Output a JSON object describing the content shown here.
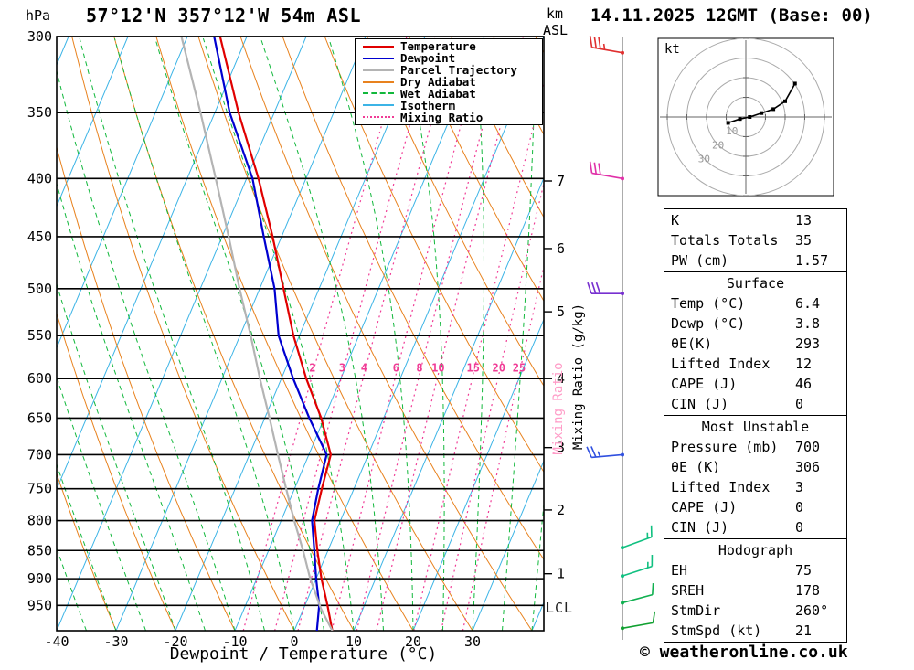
{
  "meta": {
    "pressure_unit": "hPa",
    "title": "57°12'N 357°12'W 54m ASL",
    "datetime": "14.11.2025 12GMT (Base: 00)",
    "altitude_unit_line1": "km",
    "altitude_unit_line2": "ASL",
    "xlabel": "Dewpoint / Temperature (°C)",
    "mixing_ratio_axis_label": "Mixing Ratio (g/kg)",
    "mixing_ratio_watermark": "Mixing Ratio",
    "lcl_label": "LCL",
    "copyright": "© weatheronline.co.uk",
    "hodograph_unit": "kt"
  },
  "chart_data": {
    "type": "line",
    "subtype": "skew_t_log_p",
    "title": "57°12'N 357°12'W 54m ASL",
    "xlabel": "Dewpoint / Temperature (°C)",
    "ylabel": "hPa",
    "x_ticks": [
      -40,
      -30,
      -20,
      -10,
      0,
      10,
      20,
      30
    ],
    "xlim": [
      -40,
      42
    ],
    "pressure_ticks": [
      300,
      350,
      400,
      450,
      500,
      550,
      600,
      650,
      700,
      750,
      800,
      850,
      900,
      950
    ],
    "plim": [
      300,
      1000
    ],
    "grid": true,
    "legend_position": "top-right",
    "series": [
      {
        "name": "Temperature",
        "color": "#e00000",
        "width": 2.2,
        "points": [
          [
            1000,
            6.4
          ],
          [
            950,
            3.8
          ],
          [
            900,
            0.9
          ],
          [
            850,
            -1.8
          ],
          [
            800,
            -4.4
          ],
          [
            750,
            -5.4
          ],
          [
            700,
            -6.3
          ],
          [
            650,
            -10.5
          ],
          [
            600,
            -15.8
          ],
          [
            550,
            -21.0
          ],
          [
            500,
            -26.0
          ],
          [
            450,
            -31.5
          ],
          [
            400,
            -38.0
          ],
          [
            350,
            -46.0
          ],
          [
            300,
            -54.5
          ]
        ]
      },
      {
        "name": "Dewpoint",
        "color": "#0000d0",
        "width": 2.2,
        "points": [
          [
            1000,
            3.8
          ],
          [
            950,
            2.4
          ],
          [
            900,
            0.0
          ],
          [
            850,
            -2.3
          ],
          [
            800,
            -4.8
          ],
          [
            750,
            -6.0
          ],
          [
            700,
            -7.0
          ],
          [
            650,
            -12.5
          ],
          [
            600,
            -18.0
          ],
          [
            550,
            -23.5
          ],
          [
            500,
            -27.5
          ],
          [
            450,
            -33.0
          ],
          [
            400,
            -39.0
          ],
          [
            350,
            -47.5
          ],
          [
            300,
            -55.5
          ]
        ]
      },
      {
        "name": "Parcel Trajectory",
        "color": "#b4b4b4",
        "width": 2.2,
        "points": [
          [
            1000,
            6.4
          ],
          [
            956,
            2.9
          ],
          [
            900,
            -1.0
          ],
          [
            850,
            -4.2
          ],
          [
            800,
            -7.8
          ],
          [
            750,
            -11.4
          ],
          [
            700,
            -15.2
          ],
          [
            650,
            -19.2
          ],
          [
            600,
            -23.6
          ],
          [
            550,
            -28.2
          ],
          [
            500,
            -33.4
          ],
          [
            450,
            -38.9
          ],
          [
            400,
            -45.2
          ],
          [
            350,
            -52.4
          ],
          [
            300,
            -61.0
          ]
        ]
      }
    ],
    "background_lines": {
      "isotherms": {
        "color": "#3cb4e6",
        "start": -90,
        "end": 40,
        "step": 10
      },
      "dry_adiabats": {
        "color": "#e8821e",
        "start": -30,
        "end": 160,
        "step": 10
      },
      "wet_adiabats": {
        "color": "#12b83c",
        "start": -55,
        "end": 45,
        "step": 5
      },
      "mixing_ratio": {
        "color": "#f03c96",
        "values": [
          2,
          3,
          4,
          6,
          8,
          10,
          15,
          20,
          25
        ],
        "label_pressure": 595
      }
    },
    "km_ticks": [
      {
        "km": 7,
        "p": 402
      },
      {
        "km": 6,
        "p": 461
      },
      {
        "km": 5,
        "p": 524
      },
      {
        "km": 4,
        "p": 600
      },
      {
        "km": 3,
        "p": 690
      },
      {
        "km": 2,
        "p": 783
      },
      {
        "km": 1,
        "p": 891
      }
    ],
    "lcl_pressure": 956,
    "wind_barbs": [
      {
        "p": 310,
        "dir": 280,
        "speed_kt": 35,
        "color": "#e03030"
      },
      {
        "p": 400,
        "dir": 280,
        "speed_kt": 30,
        "color": "#e030a8"
      },
      {
        "p": 505,
        "dir": 270,
        "speed_kt": 30,
        "color": "#7830d0"
      },
      {
        "p": 700,
        "dir": 265,
        "speed_kt": 25,
        "color": "#3050e0"
      },
      {
        "p": 845,
        "dir": 70,
        "speed_kt": 15,
        "color": "#10c080"
      },
      {
        "p": 895,
        "dir": 72,
        "speed_kt": 15,
        "color": "#10c080"
      },
      {
        "p": 945,
        "dir": 75,
        "speed_kt": 12,
        "color": "#10b050"
      },
      {
        "p": 995,
        "dir": 80,
        "speed_kt": 10,
        "color": "#10a030"
      }
    ],
    "hodograph": {
      "unit": "kt",
      "rings_kt": [
        10,
        20,
        30,
        40
      ],
      "ring_labels": [
        10,
        20,
        30
      ],
      "trace_uv_kt": [
        [
          -9,
          -3
        ],
        [
          -3,
          -1
        ],
        [
          2,
          0
        ],
        [
          8,
          2
        ],
        [
          14,
          4
        ],
        [
          20,
          8
        ],
        [
          25,
          17
        ]
      ]
    }
  },
  "legend": {
    "items": [
      {
        "label": "Temperature",
        "color": "#e00000",
        "style": "solid"
      },
      {
        "label": "Dewpoint",
        "color": "#0000d0",
        "style": "solid"
      },
      {
        "label": "Parcel Trajectory",
        "color": "#b4b4b4",
        "style": "solid"
      },
      {
        "label": "Dry Adiabat",
        "color": "#e8821e",
        "style": "solid"
      },
      {
        "label": "Wet Adiabat",
        "color": "#12b83c",
        "style": "dashed"
      },
      {
        "label": "Isotherm",
        "color": "#3cb4e6",
        "style": "solid"
      },
      {
        "label": "Mixing Ratio",
        "color": "#f03c96",
        "style": "dotted"
      }
    ]
  },
  "table": {
    "sections": [
      {
        "header": null,
        "rows": [
          [
            "K",
            "13"
          ],
          [
            "Totals Totals",
            "35"
          ],
          [
            "PW (cm)",
            "1.57"
          ]
        ]
      },
      {
        "header": "Surface",
        "rows": [
          [
            "Temp (°C)",
            "6.4"
          ],
          [
            "Dewp (°C)",
            "3.8"
          ],
          [
            "θE(K)",
            "293"
          ],
          [
            "Lifted Index",
            "12"
          ],
          [
            "CAPE (J)",
            "46"
          ],
          [
            "CIN (J)",
            "0"
          ]
        ]
      },
      {
        "header": "Most Unstable",
        "rows": [
          [
            "Pressure (mb)",
            "700"
          ],
          [
            "θE (K)",
            "306"
          ],
          [
            "Lifted Index",
            "3"
          ],
          [
            "CAPE (J)",
            "0"
          ],
          [
            "CIN (J)",
            "0"
          ]
        ]
      },
      {
        "header": "Hodograph",
        "rows": [
          [
            "EH",
            "75"
          ],
          [
            "SREH",
            "178"
          ],
          [
            "StmDir",
            "260°"
          ],
          [
            "StmSpd (kt)",
            "21"
          ]
        ]
      }
    ]
  }
}
